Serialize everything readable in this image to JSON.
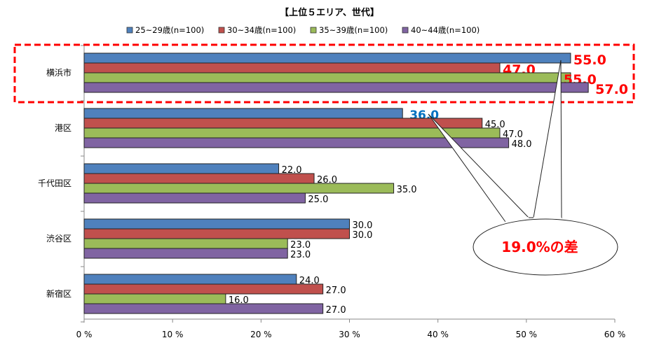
{
  "chart_data": {
    "type": "bar",
    "orientation": "horizontal",
    "title": "【上位５エリア、世代】",
    "categories": [
      "横浜市",
      "港区",
      "千代田区",
      "渋谷区",
      "新宿区"
    ],
    "series": [
      {
        "name": "25~29歳(n=100)",
        "color": "#4f81bd",
        "values": [
          55.0,
          36.0,
          22.0,
          30.0,
          24.0
        ]
      },
      {
        "name": "30~34歳(n=100)",
        "color": "#c0504d",
        "values": [
          47.0,
          45.0,
          26.0,
          30.0,
          27.0
        ]
      },
      {
        "name": "35~39歳(n=100)",
        "color": "#9bbb59",
        "values": [
          55.0,
          47.0,
          35.0,
          23.0,
          16.0
        ]
      },
      {
        "name": "40~44歳(n=100)",
        "color": "#8064a2",
        "values": [
          57.0,
          48.0,
          25.0,
          23.0,
          27.0
        ]
      }
    ],
    "xlim": [
      0,
      60
    ],
    "xticks": [
      "0 %",
      "10 %",
      "20 %",
      "30 %",
      "40 %",
      "50 %",
      "60 %"
    ],
    "legend": "top",
    "grid": false,
    "highlight": {
      "category": "横浜市",
      "color": "#ff0000",
      "style": "dashed box"
    },
    "highlight_label_color": "#0070c0",
    "annotation": "19.0%の差"
  }
}
